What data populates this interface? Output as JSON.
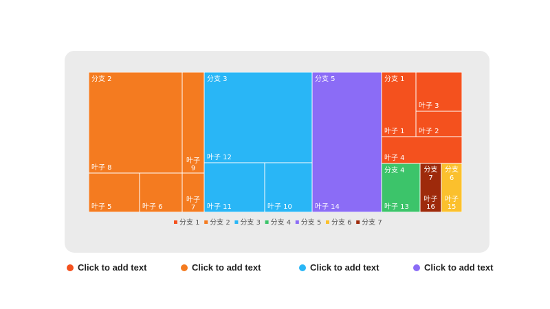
{
  "chart_data": {
    "type": "treemap",
    "legend_position": "bottom",
    "legend": [
      "分支 1",
      "分支 2",
      "分支 3",
      "分支 4",
      "分支 5",
      "分支 6",
      "分支 7"
    ],
    "colors": [
      "#f4511e",
      "#f47b20",
      "#29b6f6",
      "#3cc46a",
      "#8b6cf6",
      "#fbc02d",
      "#9e2a0b"
    ],
    "nodes": [
      {
        "branch": "分支 2",
        "color": "#f47b20",
        "label_top": "分支 2",
        "label_bottom": "",
        "leaves": [
          {
            "label": "叶子 8",
            "value": 8
          },
          {
            "label": "叶子 9",
            "value": 1.5
          },
          {
            "label": "叶子 5",
            "value": 2.2
          },
          {
            "label": "叶子 6",
            "value": 1.9
          },
          {
            "label": "叶子 7",
            "value": 0.9
          }
        ]
      },
      {
        "branch": "分支 3",
        "color": "#29b6f6",
        "label_top": "分支 3",
        "label_bottom": "",
        "leaves": [
          {
            "label": "叶子 12",
            "value": 8.5
          },
          {
            "label": "叶子 11",
            "value": 3.6
          },
          {
            "label": "叶子 10",
            "value": 2.9
          }
        ]
      },
      {
        "branch": "分支 5",
        "color": "#8b6cf6",
        "label_top": "分支 5",
        "label_bottom": "",
        "leaves": [
          {
            "label": "叶子 14",
            "value": 9.7
          }
        ]
      },
      {
        "branch": "分支 1",
        "color": "#f4511e",
        "label_top": "分支 1",
        "label_bottom": "",
        "leaves": [
          {
            "label": "叶子 1",
            "value": 3.4
          },
          {
            "label": "叶子 3",
            "value": 2.1
          },
          {
            "label": "叶子 2",
            "value": 1.3
          },
          {
            "label": "叶子 4",
            "value": 2.2
          }
        ]
      },
      {
        "branch": "分支 4",
        "color": "#3cc46a",
        "label_top": "分支 4",
        "label_bottom": "叶子 13",
        "leaves": [
          {
            "label": "叶子 13",
            "value": 3.2
          }
        ]
      },
      {
        "branch": "分支 7",
        "color": "#9e2a0b",
        "label_top": "分支 7",
        "label_bottom": "叶子 16",
        "leaves": [
          {
            "label": "叶子 16",
            "value": 1.7
          }
        ]
      },
      {
        "branch": "分支 6",
        "color": "#fbc02d",
        "label_top": "分支 6",
        "label_bottom": "叶子 15",
        "leaves": [
          {
            "label": "叶子 15",
            "value": 1.6
          }
        ]
      }
    ]
  },
  "bottom_legend": [
    {
      "label": "Click to add text",
      "color": "#f4511e"
    },
    {
      "label": "Click to add text",
      "color": "#f47b20"
    },
    {
      "label": "Click to add text",
      "color": "#29b6f6"
    },
    {
      "label": "Click to add text",
      "color": "#8b6cf6"
    }
  ]
}
